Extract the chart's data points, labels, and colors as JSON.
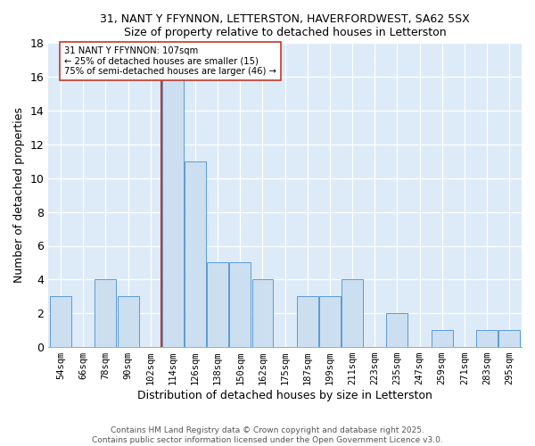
{
  "title1": "31, NANT Y FFYNNON, LETTERSTON, HAVERFORDWEST, SA62 5SX",
  "title2": "Size of property relative to detached houses in Letterston",
  "xlabel": "Distribution of detached houses by size in Letterston",
  "ylabel": "Number of detached properties",
  "bins": [
    "54sqm",
    "66sqm",
    "78sqm",
    "90sqm",
    "102sqm",
    "114sqm",
    "126sqm",
    "138sqm",
    "150sqm",
    "162sqm",
    "175sqm",
    "187sqm",
    "199sqm",
    "211sqm",
    "223sqm",
    "235sqm",
    "247sqm",
    "259sqm",
    "271sqm",
    "283sqm",
    "295sqm"
  ],
  "values": [
    3,
    0,
    4,
    3,
    0,
    16,
    11,
    5,
    5,
    4,
    0,
    3,
    3,
    4,
    0,
    2,
    0,
    1,
    0,
    1,
    1
  ],
  "bar_color": "#ccdff0",
  "bar_edge_color": "#5b9bd5",
  "marker_bin_index": 5,
  "marker_color": "#c0392b",
  "annotation_text": "31 NANT Y FFYNNON: 107sqm\n← 25% of detached houses are smaller (15)\n75% of semi-detached houses are larger (46) →",
  "annotation_box_color": "#ffffff",
  "annotation_box_edge": "#c0392b",
  "ylim": [
    0,
    18
  ],
  "yticks": [
    0,
    2,
    4,
    6,
    8,
    10,
    12,
    14,
    16,
    18
  ],
  "bg_color": "#ddeaf7",
  "footer1": "Contains HM Land Registry data © Crown copyright and database right 2025.",
  "footer2": "Contains public sector information licensed under the Open Government Licence v3.0."
}
